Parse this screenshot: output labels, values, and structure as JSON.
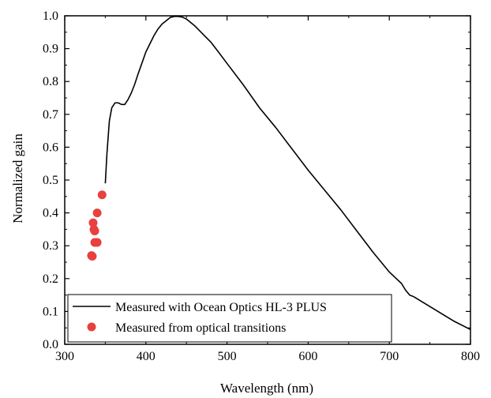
{
  "chart_data": {
    "type": "line",
    "xlabel": "Wavelength (nm)",
    "ylabel": "Normalized gain",
    "xlim": [
      300,
      800
    ],
    "ylim": [
      0.0,
      1.0
    ],
    "xticks": [
      300,
      400,
      500,
      600,
      700,
      800
    ],
    "yticks": [
      0.0,
      0.1,
      0.2,
      0.3,
      0.4,
      0.5,
      0.6,
      0.7,
      0.8,
      0.9,
      1.0
    ],
    "xtick_labels": [
      "300",
      "400",
      "500",
      "600",
      "700",
      "800"
    ],
    "ytick_labels": [
      "0.0",
      "0.1",
      "0.2",
      "0.3",
      "0.4",
      "0.5",
      "0.6",
      "0.7",
      "0.8",
      "0.9",
      "1.0"
    ],
    "grid": false,
    "legend_position": "bottom-left",
    "series": [
      {
        "name": "Measured with Ocean Optics HL-3 PLUS",
        "kind": "line",
        "color": "#000000",
        "x": [
          350,
          352,
          355,
          358,
          362,
          366,
          370,
          374,
          378,
          382,
          386,
          390,
          395,
          400,
          405,
          410,
          415,
          420,
          425,
          430,
          435,
          440,
          445,
          450,
          460,
          470,
          480,
          490,
          500,
          520,
          540,
          560,
          580,
          600,
          620,
          640,
          660,
          680,
          700,
          715,
          720,
          725,
          730,
          740,
          760,
          780,
          800
        ],
        "y": [
          0.49,
          0.58,
          0.68,
          0.72,
          0.735,
          0.735,
          0.73,
          0.73,
          0.745,
          0.765,
          0.79,
          0.82,
          0.855,
          0.89,
          0.915,
          0.94,
          0.96,
          0.975,
          0.985,
          0.995,
          0.998,
          0.998,
          0.996,
          0.99,
          0.97,
          0.945,
          0.92,
          0.888,
          0.855,
          0.79,
          0.72,
          0.66,
          0.595,
          0.53,
          0.47,
          0.41,
          0.345,
          0.28,
          0.22,
          0.185,
          0.165,
          0.15,
          0.145,
          0.13,
          0.1,
          0.07,
          0.045
        ]
      },
      {
        "name": "Measured from optical transitions",
        "kind": "scatter",
        "color": "#e8403f",
        "x": [
          333,
          334,
          335,
          336,
          337,
          337,
          338,
          340,
          340,
          346
        ],
        "y": [
          0.27,
          0.268,
          0.37,
          0.35,
          0.345,
          0.31,
          0.31,
          0.31,
          0.4,
          0.455
        ]
      }
    ]
  }
}
